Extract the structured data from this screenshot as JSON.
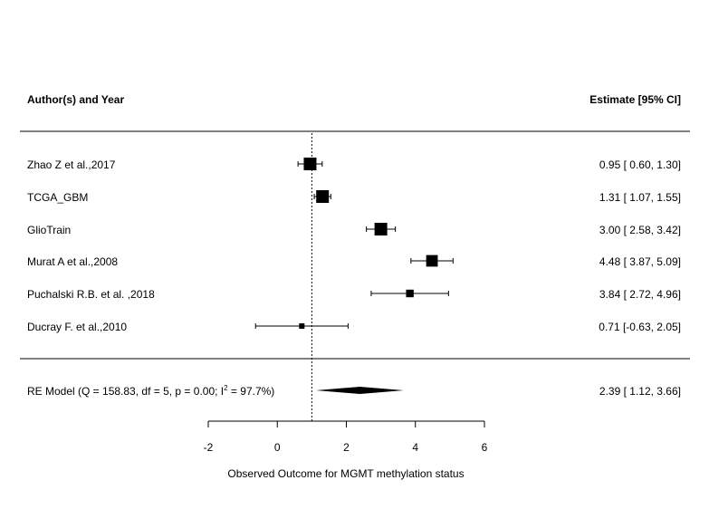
{
  "chart_data": {
    "type": "forest",
    "headers": {
      "study": "Author(s) and Year",
      "estimate": "Estimate [95% CI]"
    },
    "studies": [
      {
        "label": "Zhao Z et al.,2017",
        "estimate": 0.95,
        "ci_low": 0.6,
        "ci_high": 1.3,
        "ci_text": "0.95 [ 0.60, 1.30]",
        "weight": 3
      },
      {
        "label": "TCGA_GBM",
        "estimate": 1.31,
        "ci_low": 1.07,
        "ci_high": 1.55,
        "ci_text": "1.31 [ 1.07, 1.55]",
        "weight": 3
      },
      {
        "label": "GlioTrain",
        "estimate": 3.0,
        "ci_low": 2.58,
        "ci_high": 3.42,
        "ci_text": "3.00 [ 2.58, 3.42]",
        "weight": 3
      },
      {
        "label": "Murat A et al.,2008",
        "estimate": 4.48,
        "ci_low": 3.87,
        "ci_high": 5.09,
        "ci_text": "4.48 [ 3.87, 5.09]",
        "weight": 2.7
      },
      {
        "label": "Puchalski R.B. et al. ,2018",
        "estimate": 3.84,
        "ci_low": 2.72,
        "ci_high": 4.96,
        "ci_text": "3.84 [ 2.72, 4.96]",
        "weight": 1.6
      },
      {
        "label": "Ducray F. et al.,2010",
        "estimate": 0.71,
        "ci_low": -0.63,
        "ci_high": 2.05,
        "ci_text": "0.71 [-0.63, 2.05]",
        "weight": 1
      }
    ],
    "summary": {
      "label_pre": "RE Model (Q = 158.83, df = 5, p = 0.00; I",
      "label_sup": "2",
      "label_post": " = 97.7%)",
      "estimate": 2.39,
      "ci_low": 1.12,
      "ci_high": 3.66,
      "ci_text": "2.39 [ 1.12, 3.66]"
    },
    "reference_line": 1,
    "xlim": [
      -2,
      6
    ],
    "xticks": [
      -2,
      0,
      2,
      4,
      6
    ],
    "xlabel": "Observed Outcome for MGMT methylation status"
  }
}
